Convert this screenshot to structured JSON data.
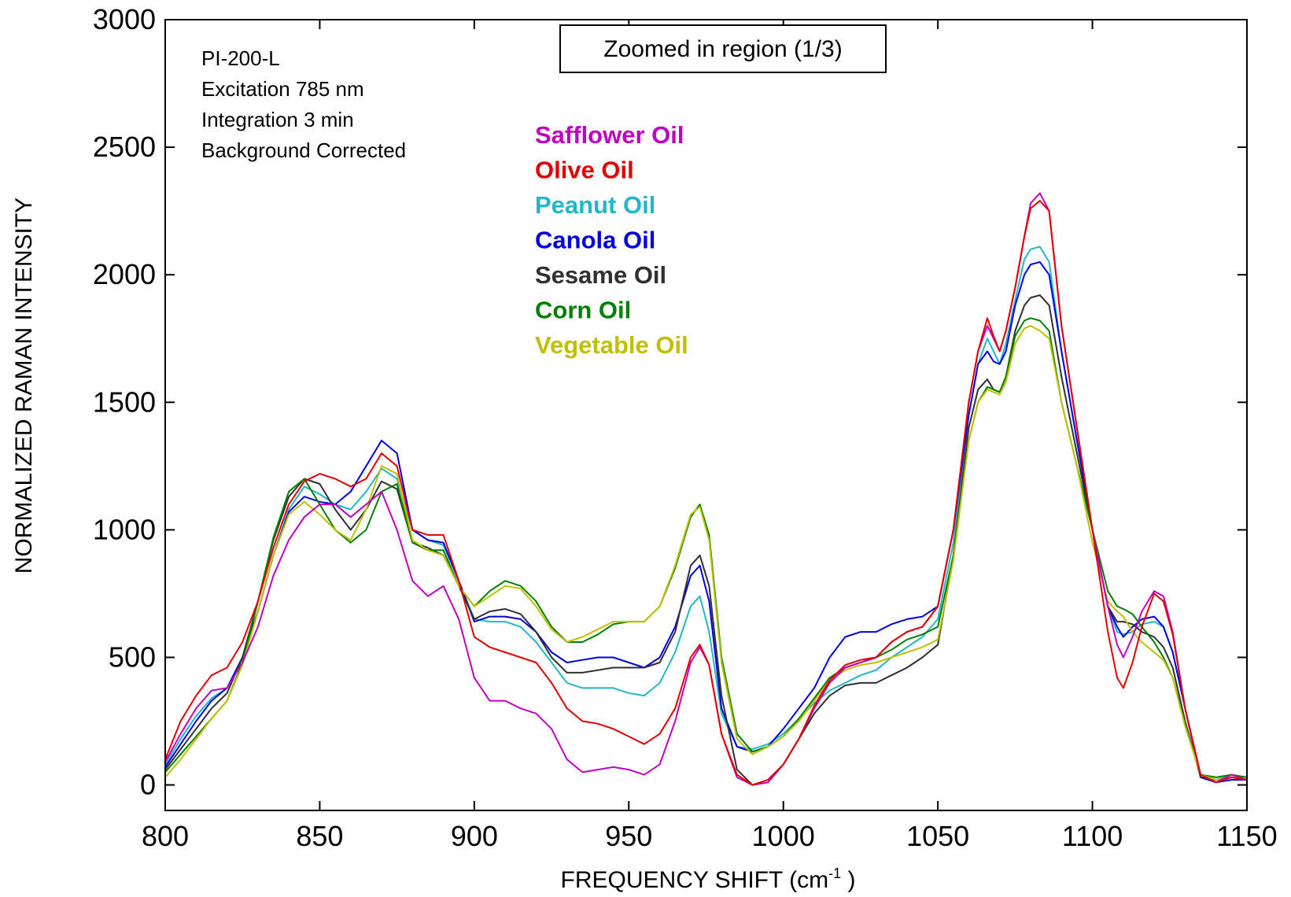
{
  "chart_data": {
    "type": "line",
    "title": "",
    "xlabel": "FREQUENCY SHIFT (cm",
    "xlabel_sup": "-1",
    "xlabel_end": " )",
    "ylabel": "NORMALIZED RAMAN INTENSITY",
    "xlim": [
      800,
      1150
    ],
    "ylim": [
      -100,
      3000
    ],
    "x_ticks": [
      800,
      850,
      900,
      950,
      1000,
      1050,
      1100,
      1150
    ],
    "y_ticks": [
      0,
      500,
      1000,
      1500,
      2000,
      2500,
      3000
    ],
    "grid": false,
    "legend_position": "top-center",
    "annotation_box": "Zoomed in region (1/3)",
    "info_lines": [
      "PI-200-L",
      "Excitation 785 nm",
      "Integration 3 min",
      "Background Corrected"
    ],
    "x": [
      800,
      805,
      810,
      815,
      820,
      825,
      830,
      835,
      840,
      845,
      850,
      855,
      860,
      865,
      870,
      875,
      880,
      885,
      890,
      895,
      900,
      905,
      910,
      915,
      920,
      925,
      930,
      935,
      940,
      945,
      950,
      955,
      960,
      965,
      970,
      973,
      976,
      980,
      985,
      990,
      995,
      1000,
      1005,
      1010,
      1015,
      1020,
      1025,
      1030,
      1035,
      1040,
      1045,
      1050,
      1055,
      1060,
      1063,
      1066,
      1068,
      1070,
      1072,
      1075,
      1078,
      1080,
      1083,
      1086,
      1090,
      1095,
      1100,
      1105,
      1108,
      1110,
      1113,
      1116,
      1120,
      1123,
      1126,
      1130,
      1135,
      1140,
      1145,
      1150
    ],
    "series": [
      {
        "name": "Safflower Oil",
        "color": "#c000c0",
        "values": [
          90,
          200,
          300,
          370,
          380,
          480,
          620,
          820,
          960,
          1050,
          1100,
          1100,
          1050,
          1100,
          1150,
          1000,
          800,
          740,
          780,
          650,
          420,
          330,
          330,
          300,
          280,
          220,
          100,
          50,
          60,
          70,
          60,
          40,
          80,
          250,
          480,
          540,
          470,
          200,
          30,
          0,
          10,
          80,
          180,
          300,
          400,
          460,
          480,
          500,
          560,
          600,
          620,
          700,
          1000,
          1500,
          1700,
          1800,
          1750,
          1700,
          1780,
          1950,
          2150,
          2280,
          2320,
          2250,
          1800,
          1400,
          1000,
          700,
          550,
          500,
          580,
          680,
          760,
          740,
          600,
          300,
          40,
          10,
          40,
          20
        ]
      },
      {
        "name": "Olive Oil",
        "color": "#e00000",
        "values": [
          100,
          250,
          350,
          430,
          460,
          560,
          720,
          930,
          1100,
          1190,
          1220,
          1200,
          1170,
          1200,
          1300,
          1250,
          1000,
          980,
          980,
          800,
          580,
          540,
          520,
          500,
          480,
          400,
          300,
          250,
          240,
          220,
          190,
          160,
          200,
          300,
          500,
          550,
          470,
          200,
          40,
          0,
          20,
          80,
          180,
          310,
          410,
          470,
          490,
          500,
          560,
          600,
          620,
          700,
          1000,
          1500,
          1700,
          1830,
          1760,
          1700,
          1780,
          1950,
          2150,
          2260,
          2290,
          2250,
          1800,
          1400,
          1000,
          600,
          420,
          380,
          480,
          620,
          750,
          720,
          590,
          300,
          40,
          10,
          30,
          20
        ]
      },
      {
        "name": "Peanut Oil",
        "color": "#20b8c8",
        "values": [
          80,
          180,
          270,
          340,
          380,
          500,
          680,
          900,
          1080,
          1170,
          1140,
          1100,
          1080,
          1150,
          1240,
          1200,
          1000,
          960,
          940,
          800,
          650,
          640,
          640,
          620,
          560,
          480,
          400,
          380,
          380,
          380,
          360,
          350,
          400,
          520,
          700,
          740,
          600,
          280,
          150,
          140,
          160,
          200,
          260,
          320,
          370,
          400,
          430,
          450,
          500,
          540,
          580,
          650,
          950,
          1450,
          1650,
          1750,
          1700,
          1650,
          1730,
          1900,
          2060,
          2100,
          2110,
          2050,
          1700,
          1350,
          1000,
          700,
          600,
          590,
          600,
          630,
          640,
          620,
          520,
          300,
          40,
          20,
          40,
          20
        ]
      },
      {
        "name": "Canola Oil",
        "color": "#0000e0",
        "values": [
          70,
          160,
          250,
          330,
          380,
          500,
          680,
          900,
          1070,
          1130,
          1110,
          1100,
          1150,
          1250,
          1350,
          1300,
          1000,
          960,
          950,
          800,
          640,
          660,
          660,
          650,
          600,
          520,
          480,
          490,
          500,
          500,
          480,
          460,
          500,
          620,
          820,
          860,
          720,
          300,
          150,
          130,
          150,
          220,
          300,
          380,
          500,
          580,
          600,
          600,
          630,
          650,
          660,
          700,
          1000,
          1450,
          1650,
          1700,
          1660,
          1650,
          1700,
          1880,
          2000,
          2040,
          2050,
          2000,
          1700,
          1350,
          1000,
          700,
          620,
          580,
          620,
          650,
          660,
          620,
          520,
          300,
          30,
          10,
          20,
          20
        ]
      },
      {
        "name": "Sesame Oil",
        "color": "#303030",
        "values": [
          60,
          140,
          220,
          300,
          360,
          500,
          720,
          960,
          1130,
          1200,
          1180,
          1080,
          1000,
          1080,
          1190,
          1160,
          950,
          930,
          900,
          780,
          650,
          680,
          690,
          670,
          600,
          500,
          440,
          440,
          450,
          460,
          460,
          460,
          480,
          600,
          860,
          900,
          780,
          350,
          60,
          0,
          10,
          80,
          180,
          280,
          350,
          390,
          400,
          400,
          430,
          460,
          500,
          550,
          900,
          1400,
          1550,
          1590,
          1550,
          1540,
          1600,
          1780,
          1880,
          1910,
          1920,
          1880,
          1600,
          1300,
          1000,
          700,
          640,
          640,
          630,
          600,
          580,
          540,
          460,
          250,
          30,
          20,
          30,
          20
        ]
      },
      {
        "name": "Corn Oil",
        "color": "#008000",
        "values": [
          50,
          120,
          190,
          260,
          330,
          480,
          720,
          970,
          1150,
          1200,
          1100,
          1000,
          950,
          1000,
          1150,
          1180,
          950,
          920,
          920,
          780,
          700,
          760,
          800,
          780,
          720,
          620,
          560,
          560,
          590,
          630,
          640,
          640,
          700,
          850,
          1050,
          1100,
          980,
          500,
          200,
          130,
          150,
          190,
          260,
          340,
          420,
          460,
          480,
          500,
          530,
          570,
          590,
          620,
          900,
          1350,
          1500,
          1560,
          1550,
          1540,
          1600,
          1760,
          1820,
          1830,
          1820,
          1780,
          1500,
          1250,
          1000,
          760,
          700,
          690,
          670,
          620,
          560,
          500,
          420,
          240,
          40,
          30,
          40,
          30
        ]
      },
      {
        "name": "Vegetable Oil",
        "color": "#c0c000",
        "values": [
          30,
          100,
          180,
          260,
          330,
          470,
          680,
          900,
          1060,
          1110,
          1060,
          1000,
          960,
          1080,
          1250,
          1220,
          960,
          920,
          900,
          780,
          700,
          740,
          780,
          770,
          700,
          610,
          560,
          580,
          610,
          640,
          640,
          640,
          700,
          860,
          1060,
          1090,
          960,
          480,
          180,
          120,
          150,
          190,
          250,
          330,
          410,
          450,
          470,
          480,
          500,
          520,
          540,
          570,
          880,
          1350,
          1500,
          1550,
          1540,
          1530,
          1580,
          1730,
          1790,
          1800,
          1780,
          1750,
          1500,
          1250,
          950,
          720,
          680,
          660,
          600,
          560,
          520,
          490,
          420,
          230,
          40,
          20,
          30,
          20
        ]
      }
    ]
  }
}
